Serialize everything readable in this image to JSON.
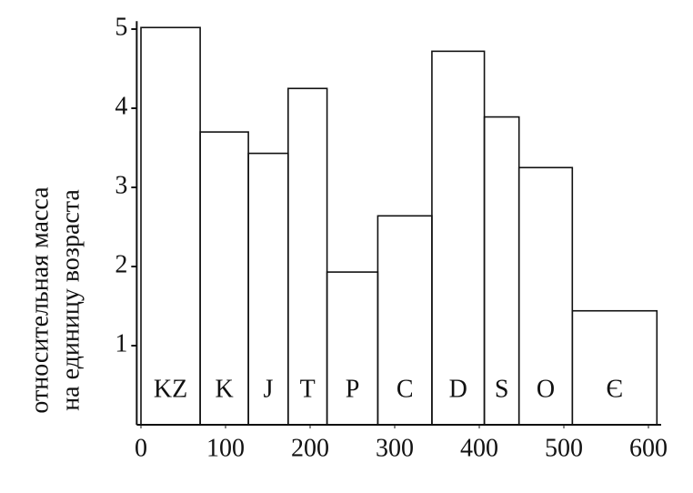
{
  "chart_data": {
    "type": "histogram",
    "ylabel": [
      "относительная масса",
      "на единицу возраста"
    ],
    "bins": [
      0,
      70,
      127,
      174,
      220,
      280,
      344,
      406,
      447,
      510,
      610
    ],
    "values": [
      5.02,
      3.7,
      3.43,
      4.25,
      1.93,
      2.64,
      4.72,
      3.89,
      3.25,
      1.44
    ],
    "labels": [
      "KZ",
      "K",
      "J",
      "T",
      "P",
      "C",
      "D",
      "S",
      "O",
      "Є"
    ],
    "color": "#111111",
    "xlim": [
      -5,
      615
    ],
    "xticks": [
      0,
      100,
      200,
      300,
      400,
      500,
      600
    ],
    "ylim": [
      0,
      5.1
    ],
    "yticks": [
      1,
      2,
      3,
      4,
      5
    ]
  }
}
